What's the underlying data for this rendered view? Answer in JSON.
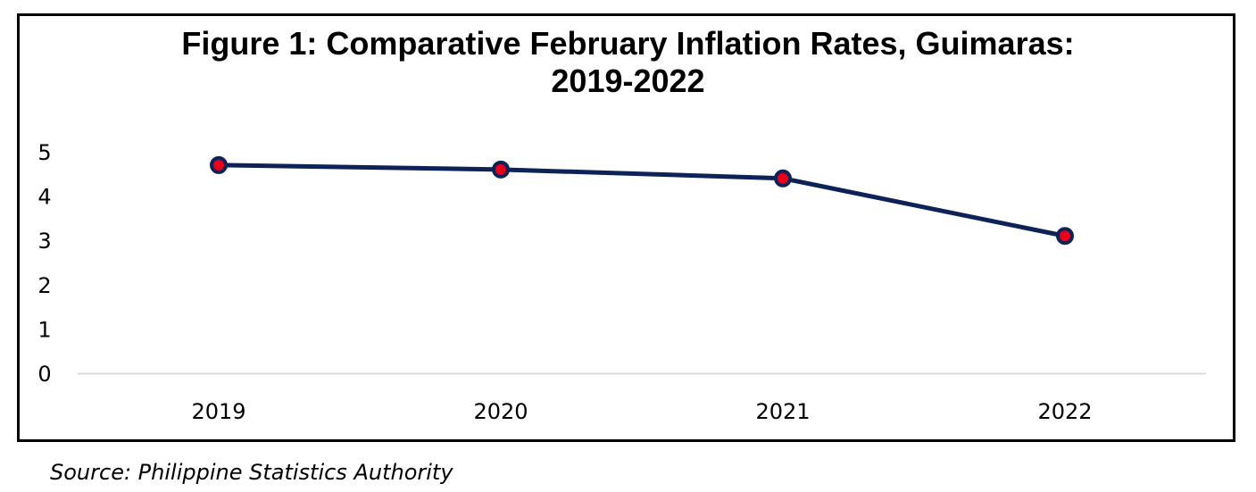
{
  "chart_data": {
    "type": "line",
    "title_lines": [
      "Figure 1: Comparative February Inflation Rates, Guimaras:",
      "2019-2022"
    ],
    "categories": [
      "2019",
      "2020",
      "2021",
      "2022"
    ],
    "series": [
      {
        "values": [
          4.7,
          4.6,
          4.4,
          3.1
        ]
      }
    ],
    "yticks": [
      0,
      1,
      2,
      3,
      4,
      5
    ],
    "ylim": [
      0,
      5
    ],
    "grid": false,
    "legend": "none",
    "colors": {
      "line": "#0d2357",
      "marker_fill": "#e8001c",
      "marker_stroke": "#0d2357",
      "axis": "#d9d9d9"
    }
  },
  "source": "Source: Philippine Statistics Authority"
}
